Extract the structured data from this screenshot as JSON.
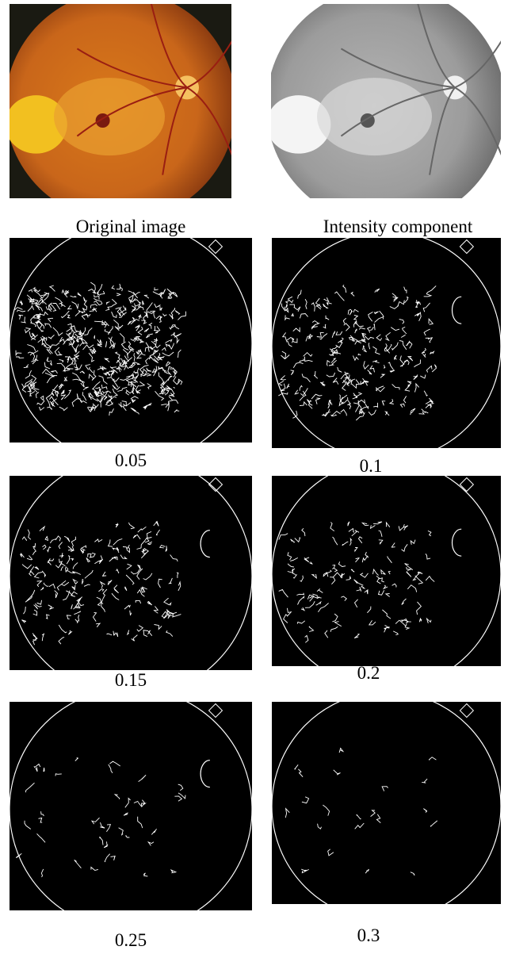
{
  "panels": [
    {
      "caption": "Original image"
    },
    {
      "caption": "Intensity component"
    },
    {
      "caption": "0.05"
    },
    {
      "caption": "0.1"
    },
    {
      "caption": "0.15"
    },
    {
      "caption": "0.2"
    },
    {
      "caption": "0.25"
    },
    {
      "caption": "0.3"
    }
  ]
}
